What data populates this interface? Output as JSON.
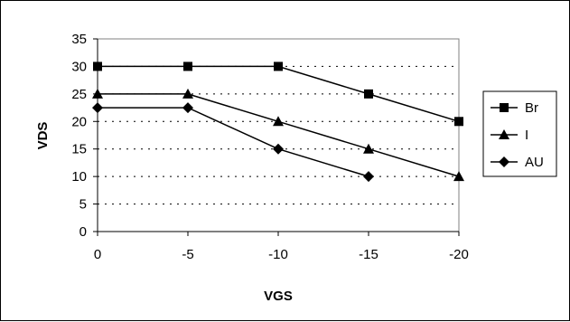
{
  "chart_data": {
    "type": "line",
    "title": "",
    "xlabel": "VGS",
    "ylabel": "VDS",
    "x": [
      0,
      -5,
      -10,
      -15,
      -20
    ],
    "x_tick_labels": [
      "0",
      "-5",
      "-10",
      "-15",
      "-20"
    ],
    "y_tick_labels": [
      "0",
      "5",
      "10",
      "15",
      "20",
      "25",
      "30",
      "35"
    ],
    "xlim": [
      0,
      -20
    ],
    "ylim": [
      0,
      35
    ],
    "grid": "horizontal-dotted",
    "legend_position": "right",
    "series": [
      {
        "name": "Br",
        "marker": "square",
        "color": "#000000",
        "values": [
          30,
          30,
          30,
          25,
          20
        ]
      },
      {
        "name": "I",
        "marker": "triangle",
        "color": "#000000",
        "values": [
          25,
          25,
          20,
          15,
          10
        ]
      },
      {
        "name": "AU",
        "marker": "diamond",
        "color": "#000000",
        "values": [
          22.5,
          22.5,
          15,
          10,
          null
        ]
      }
    ]
  }
}
